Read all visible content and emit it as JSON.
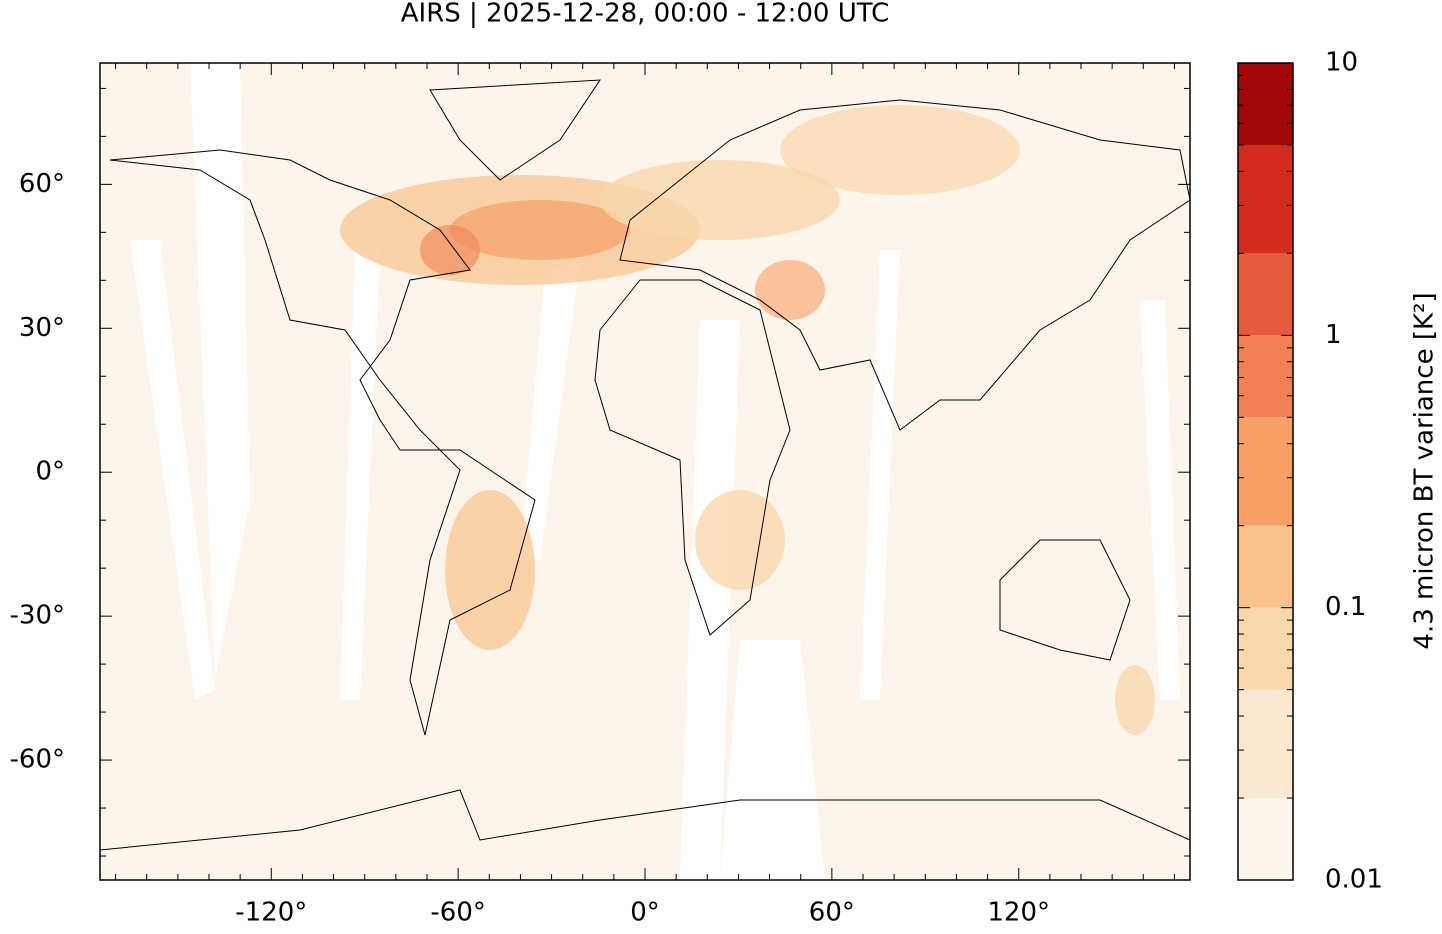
{
  "chart_data": {
    "type": "map",
    "title": "AIRS | 2025-12-28, 00:00 - 12:00 UTC",
    "xlim": [
      -175,
      175
    ],
    "ylim": [
      -85,
      85.3
    ],
    "xticks": [
      {
        "value": -120,
        "label": "-120°"
      },
      {
        "value": -60,
        "label": "-60°"
      },
      {
        "value": 0,
        "label": "0°"
      },
      {
        "value": 60,
        "label": "60°"
      },
      {
        "value": 120,
        "label": "120°"
      }
    ],
    "yticks": [
      {
        "value": -60,
        "label": "-60°"
      },
      {
        "value": -30,
        "label": "-30°"
      },
      {
        "value": 0,
        "label": "0°"
      },
      {
        "value": 30,
        "label": "30°"
      },
      {
        "value": 60,
        "label": "60°"
      }
    ],
    "xticks_minor": [
      -170,
      -160,
      -150,
      -140,
      -130,
      -110,
      -100,
      -90,
      -80,
      -70,
      -50,
      -40,
      -30,
      -20,
      -10,
      10,
      20,
      30,
      40,
      50,
      70,
      80,
      90,
      100,
      110,
      130,
      140,
      150,
      160,
      170
    ],
    "yticks_minor": [
      -80,
      -70,
      -50,
      -40,
      -20,
      -10,
      10,
      20,
      40,
      50,
      70,
      80
    ],
    "colorbar": {
      "label": "4.3 micron BT variance [K²]",
      "log": true,
      "lim": [
        0.01,
        10
      ],
      "ticks": [
        0.01,
        0.1,
        1,
        10
      ],
      "minor_ticks": [
        0.02,
        0.03,
        0.04,
        0.05,
        0.06,
        0.07,
        0.08,
        0.09,
        0.2,
        0.3,
        0.4,
        0.5,
        0.6,
        0.7,
        0.8,
        0.9,
        2,
        3,
        4,
        5,
        6,
        7,
        8,
        9
      ],
      "levels": [
        0.01,
        0.02,
        0.05,
        0.1,
        0.2,
        0.5,
        1,
        2,
        5,
        10
      ],
      "colors": [
        "#fdf5eb",
        "#fbe8d0",
        "#fad7ac",
        "#f9c28c",
        "#f7a066",
        "#f28055",
        "#e85a3d",
        "#d12c1e",
        "#a20808"
      ]
    }
  }
}
